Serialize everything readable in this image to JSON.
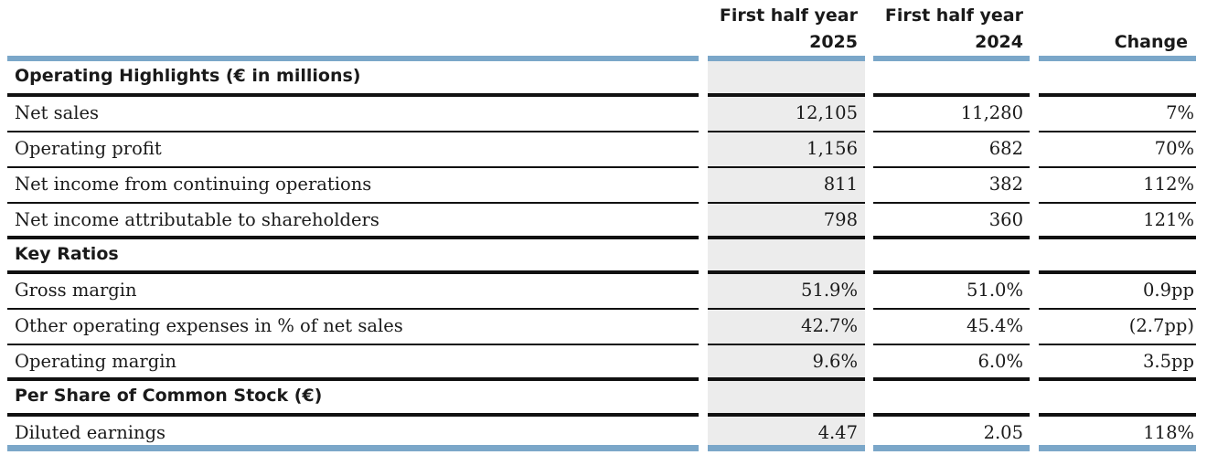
{
  "header": {
    "col1": [
      "First half year",
      "2025"
    ],
    "col2": [
      "First half year",
      "2024"
    ],
    "col3": "Change"
  },
  "sections": [
    {
      "title": "Operating Highlights (€ in millions)",
      "rows": [
        {
          "label": "Net sales",
          "v2025": "12,105",
          "v2024": "11,280",
          "change": "7%"
        },
        {
          "label": "Operating profit",
          "v2025": "1,156",
          "v2024": "682",
          "change": "70%"
        },
        {
          "label": "Net income from continuing operations",
          "v2025": "811",
          "v2024": "382",
          "change": "112%"
        },
        {
          "label": "Net income attributable to shareholders",
          "v2025": "798",
          "v2024": "360",
          "change": "121%"
        }
      ]
    },
    {
      "title": "Key Ratios",
      "rows": [
        {
          "label": "Gross margin",
          "v2025": "51.9%",
          "v2024": "51.0%",
          "change": "0.9pp"
        },
        {
          "label": "Other operating expenses in % of net sales",
          "v2025": "42.7%",
          "v2024": "45.4%",
          "change": "(2.7pp)"
        },
        {
          "label": "Operating margin",
          "v2025": "9.6%",
          "v2024": "6.0%",
          "change": "3.5pp"
        }
      ]
    },
    {
      "title": "Per Share of Common Stock (€)",
      "rows": [
        {
          "label": "Diluted earnings",
          "v2025": "4.47",
          "v2024": "2.05",
          "change": "118%"
        }
      ]
    }
  ],
  "colors": {
    "accent_bar": "#7ba7c9",
    "shade": "#ececec",
    "rule": "#111111"
  }
}
